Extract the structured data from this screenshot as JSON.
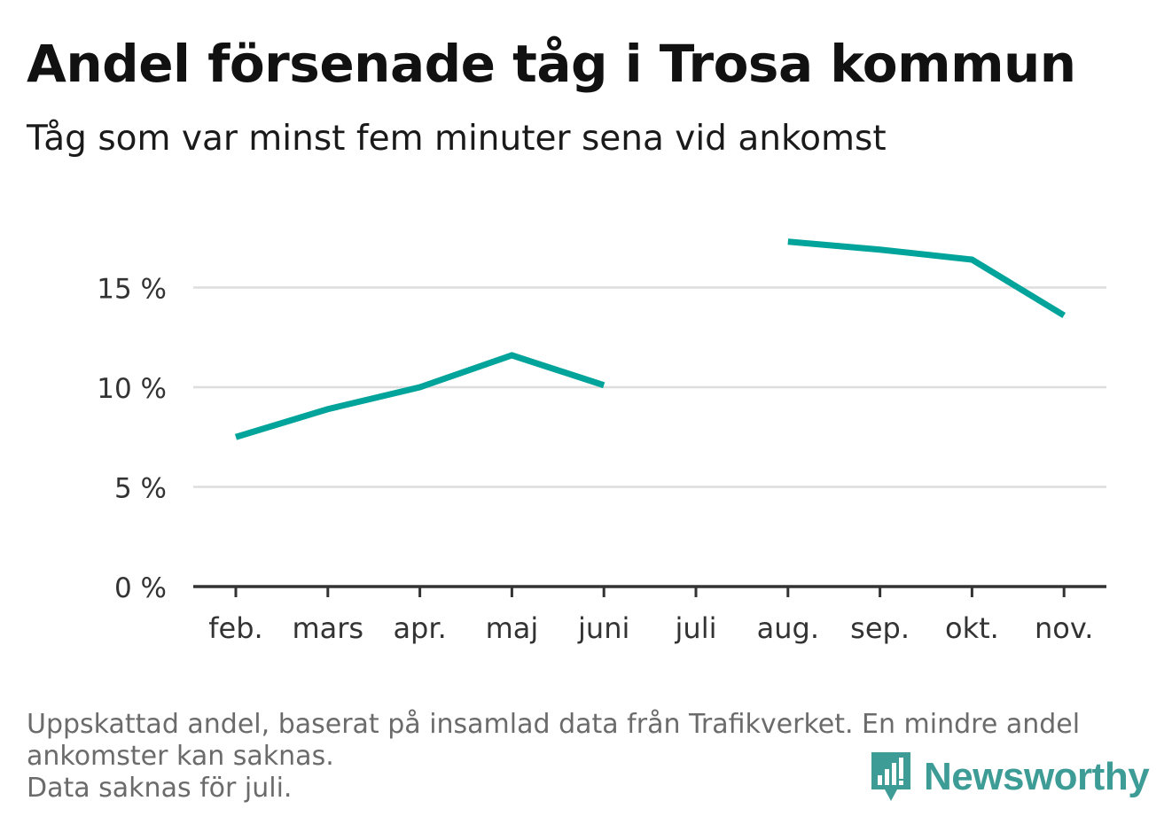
{
  "header": {
    "title": "Andel försenade tåg i Trosa kommun",
    "subtitle": "Tåg som var minst fem minuter sena vid ankomst"
  },
  "chart_data": {
    "type": "line",
    "categories": [
      "feb.",
      "mars",
      "apr.",
      "maj",
      "juni",
      "juli",
      "aug.",
      "sep.",
      "okt.",
      "nov."
    ],
    "series": [
      {
        "values": [
          7.5,
          8.9,
          10.0,
          11.6,
          10.1,
          null,
          17.3,
          16.9,
          16.4,
          13.6
        ]
      }
    ],
    "yticks": [
      0,
      5,
      10,
      15
    ],
    "ytick_labels": [
      "0 %",
      "5 %",
      "10 %",
      "15 %"
    ],
    "ylim": [
      0,
      18.5
    ],
    "grid": true,
    "color": "#00a49a"
  },
  "footnote": {
    "line1": "Uppskattad andel, baserat på insamlad data från Trafikverket. En mindre andel",
    "line2": "ankomster kan saknas.",
    "line3": "Data saknas för juli."
  },
  "logo": {
    "text": "Newsworthy",
    "icon": "bar-chart-bubble-icon",
    "color": "#3d9c96"
  }
}
